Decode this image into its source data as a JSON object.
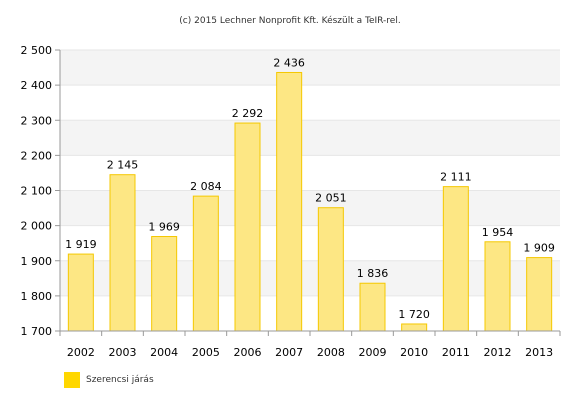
{
  "credit": "(c) 2015 Lechner Nonprofit Kft. Készült a TeIR-rel.",
  "colors": {
    "bar_fill": "#fde784",
    "bar_stroke": "#f5c800",
    "legend_swatch": "#ffd700",
    "band": "#f4f4f4"
  },
  "chart_data": {
    "type": "bar",
    "title": "",
    "xlabel": "",
    "ylabel": "",
    "categories": [
      "2002",
      "2003",
      "2004",
      "2005",
      "2006",
      "2007",
      "2008",
      "2009",
      "2010",
      "2011",
      "2012",
      "2013"
    ],
    "series": [
      {
        "name": "Szerencsi járás",
        "values": [
          1919,
          2145,
          1969,
          2084,
          2292,
          2436,
          2051,
          1836,
          1720,
          2111,
          1954,
          1909
        ],
        "labels": [
          "1 919",
          "2 145",
          "1 969",
          "2 084",
          "2 292",
          "2 436",
          "2 051",
          "1 836",
          "1 720",
          "2 111",
          "1 954",
          "1 909"
        ]
      }
    ],
    "ylim": [
      1700,
      2500
    ],
    "yticks": [
      1700,
      1800,
      1900,
      2000,
      2100,
      2200,
      2300,
      2400,
      2500
    ],
    "ytick_labels": [
      "1 700",
      "1 800",
      "1 900",
      "2 000",
      "2 100",
      "2 200",
      "2 300",
      "2 400",
      "2 500"
    ],
    "grid": true,
    "legend": "bottom-left"
  }
}
